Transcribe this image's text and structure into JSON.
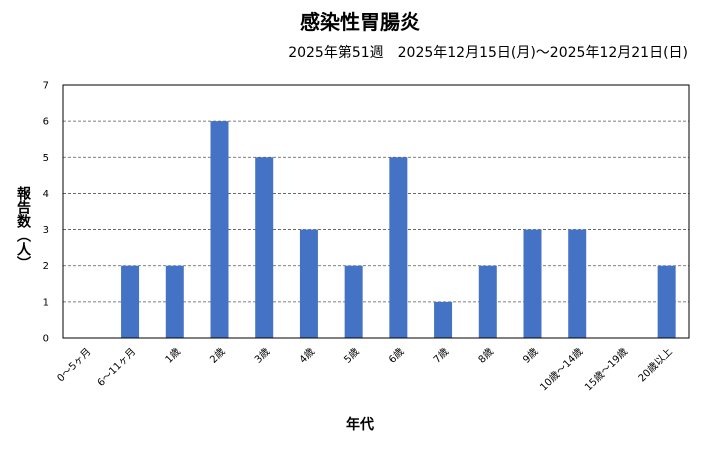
{
  "chart_data": {
    "type": "bar",
    "title": "感染性胃腸炎",
    "subtitle": "2025年第51週　2025年12月15日(月)～2025年12月21日(日)",
    "xlabel": "年代",
    "ylabel": "報告数（人）",
    "categories": [
      "0～5ヶ月",
      "6～11ヶ月",
      "1歳",
      "2歳",
      "3歳",
      "4歳",
      "5歳",
      "6歳",
      "7歳",
      "8歳",
      "9歳",
      "10歳～14歳",
      "15歳～19歳",
      "20歳以上"
    ],
    "values": [
      0,
      2,
      2,
      6,
      5,
      3,
      2,
      5,
      1,
      2,
      3,
      3,
      0,
      2
    ],
    "ylim": [
      0,
      7
    ],
    "yticks": [
      0,
      1,
      2,
      3,
      4,
      5,
      6,
      7
    ],
    "grid": true,
    "legend": "none",
    "bar_color": "#4472C4"
  }
}
